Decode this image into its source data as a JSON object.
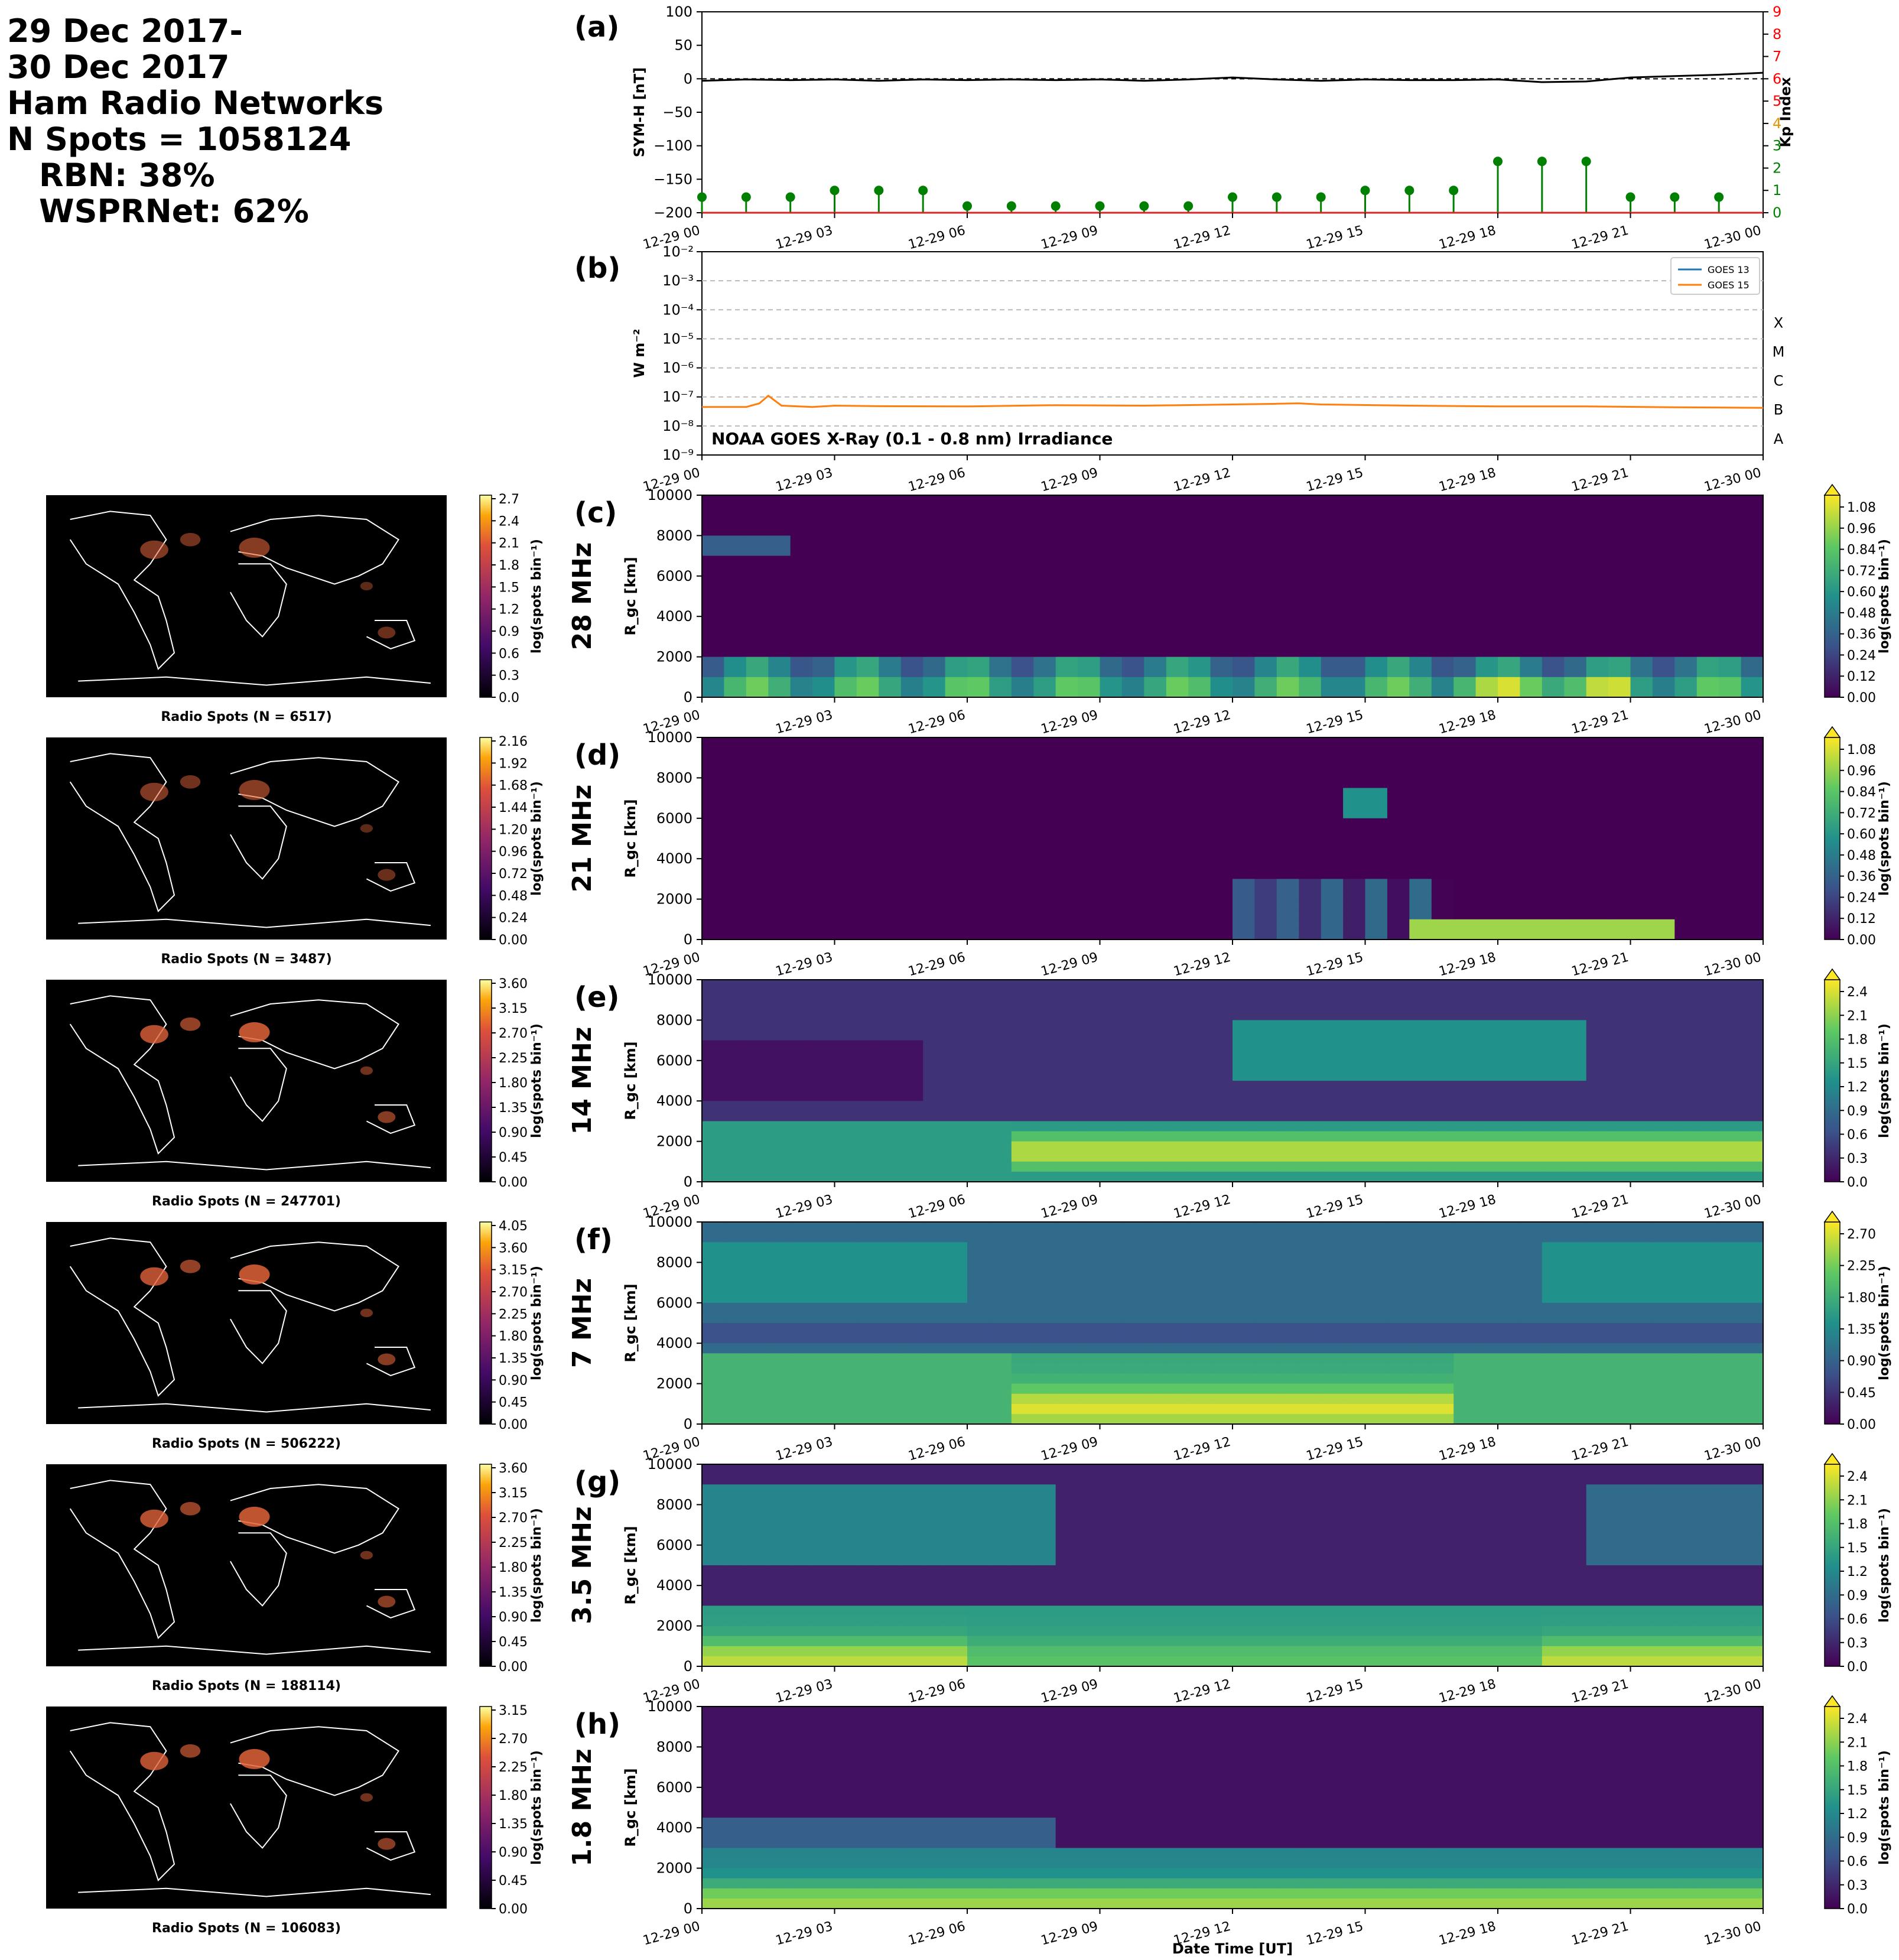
{
  "header": {
    "lines": [
      "29 Dec 2017-",
      "30 Dec 2017",
      "Ham Radio Networks",
      "N Spots = 1058124"
    ],
    "rbn": "RBN: 38%",
    "wspr": "WSPRNet: 62%"
  },
  "time_ticks": [
    "12-29 00",
    "12-29 03",
    "12-29 06",
    "12-29 09",
    "12-29 12",
    "12-29 15",
    "12-29 18",
    "12-29 21",
    "12-30 00"
  ],
  "colors": {
    "sym": "#000000",
    "kp": "#008000",
    "kp_high": "#ff0000",
    "goes13": "#1f77b4",
    "goes15": "#ff7f0e"
  },
  "chart_data": [
    {
      "panel": "(a)",
      "type": "line",
      "ylabel": "SYM-H [nT]",
      "y2label": "Kp Index",
      "ylim": [
        -200,
        100
      ],
      "yticks": [
        "100",
        "50",
        "0",
        "−50",
        "−100",
        "−150",
        "−200"
      ],
      "y2lim": [
        0,
        9
      ],
      "y2ticks": [
        "0",
        "1",
        "2",
        "3",
        "4",
        "5",
        "6",
        "7",
        "8",
        "9"
      ],
      "sym_h": {
        "x_hours": [
          0,
          1,
          2,
          3,
          4,
          5,
          6,
          7,
          8,
          9,
          10,
          11,
          12,
          13,
          14,
          15,
          16,
          17,
          18,
          19,
          20,
          21,
          22,
          23,
          24
        ],
        "values": [
          -3,
          -1,
          -2,
          -1,
          -3,
          -1,
          -2,
          -1,
          -2,
          -1,
          -3,
          -1,
          2,
          -1,
          -3,
          -1,
          -2,
          -2,
          -1,
          -5,
          -4,
          2,
          4,
          6,
          9
        ]
      },
      "kp": {
        "x_hours": [
          0,
          1,
          2,
          3,
          4,
          5,
          6,
          7,
          8,
          9,
          10,
          11,
          12,
          13,
          14,
          15,
          16,
          17,
          18,
          19,
          20,
          21,
          22,
          23
        ],
        "values": [
          0.7,
          0.7,
          0.7,
          1.0,
          1.0,
          1.0,
          0.3,
          0.3,
          0.3,
          0.3,
          0.3,
          0.3,
          0.7,
          0.7,
          0.7,
          1.0,
          1.0,
          1.0,
          2.3,
          2.3,
          2.3,
          0.7,
          0.7,
          0.7
        ]
      }
    },
    {
      "panel": "(b)",
      "type": "line",
      "ylabel": "W m⁻²",
      "yscale": "log",
      "ylim": [
        1e-09,
        0.01
      ],
      "yticks": [
        "10⁻²",
        "10⁻³",
        "10⁻⁴",
        "10⁻⁵",
        "10⁻⁶",
        "10⁻⁷",
        "10⁻⁸",
        "10⁻⁹"
      ],
      "class_labels": [
        "X",
        "M",
        "C",
        "B",
        "A"
      ],
      "annotation": "NOAA GOES X-Ray (0.1 - 0.8 nm) Irradiance",
      "legend": {
        "placement": "upper-right",
        "entries": [
          "GOES 13",
          "GOES 15"
        ]
      },
      "series": [
        {
          "name": "GOES 15",
          "x_hours": [
            0,
            1,
            1.3,
            1.5,
            1.8,
            2.5,
            3,
            4,
            6,
            8,
            10,
            12,
            13,
            13.5,
            14,
            16,
            18,
            20,
            22,
            24
          ],
          "values": [
            4.5e-08,
            4.5e-08,
            6e-08,
            1.1e-07,
            5e-08,
            4.5e-08,
            5e-08,
            4.8e-08,
            4.7e-08,
            5.2e-08,
            5e-08,
            5.5e-08,
            5.8e-08,
            6e-08,
            5.5e-08,
            5e-08,
            4.7e-08,
            4.7e-08,
            4.4e-08,
            4.2e-08
          ]
        }
      ]
    },
    {
      "panel": "(c)",
      "type": "heatmap",
      "band": "28 MHz",
      "ylabel": "R_gc [km]",
      "ylim": [
        0,
        10000
      ],
      "yticks": [
        "10000",
        "8000",
        "6000",
        "4000",
        "2000",
        "0"
      ],
      "cbar_ticks": [
        "1.08",
        "0.96",
        "0.84",
        "0.72",
        "0.60",
        "0.48",
        "0.36",
        "0.24",
        "0.12",
        "0.00"
      ],
      "cbar_label": "log(spots bin⁻¹)",
      "map_spots": "Radio Spots (N = 6517)",
      "map_cbar_ticks": [
        "2.7",
        "2.4",
        "2.1",
        "1.8",
        "1.5",
        "1.2",
        "0.9",
        "0.6",
        "0.3",
        "0.0"
      ]
    },
    {
      "panel": "(d)",
      "type": "heatmap",
      "band": "21 MHz",
      "ylabel": "R_gc [km]",
      "ylim": [
        0,
        10000
      ],
      "yticks": [
        "10000",
        "8000",
        "6000",
        "4000",
        "2000",
        "0"
      ],
      "cbar_ticks": [
        "1.08",
        "0.96",
        "0.84",
        "0.72",
        "0.60",
        "0.48",
        "0.36",
        "0.24",
        "0.12",
        "0.00"
      ],
      "cbar_label": "log(spots bin⁻¹)",
      "map_spots": "Radio Spots (N = 3487)",
      "map_cbar_ticks": [
        "2.16",
        "1.92",
        "1.68",
        "1.44",
        "1.20",
        "0.96",
        "0.72",
        "0.48",
        "0.24",
        "0.00"
      ]
    },
    {
      "panel": "(e)",
      "type": "heatmap",
      "band": "14 MHz",
      "ylabel": "R_gc [km]",
      "ylim": [
        0,
        10000
      ],
      "yticks": [
        "10000",
        "8000",
        "6000",
        "4000",
        "2000",
        "0"
      ],
      "cbar_ticks": [
        "2.4",
        "2.1",
        "1.8",
        "1.5",
        "1.2",
        "0.9",
        "0.6",
        "0.3",
        "0.0"
      ],
      "cbar_label": "log(spots bin⁻¹)",
      "map_spots": "Radio Spots (N = 247701)",
      "map_cbar_ticks": [
        "3.60",
        "3.15",
        "2.70",
        "2.25",
        "1.80",
        "1.35",
        "0.90",
        "0.45",
        "0.00"
      ]
    },
    {
      "panel": "(f)",
      "type": "heatmap",
      "band": "7 MHz",
      "ylabel": "R_gc [km]",
      "ylim": [
        0,
        10000
      ],
      "yticks": [
        "10000",
        "8000",
        "6000",
        "4000",
        "2000",
        "0"
      ],
      "cbar_ticks": [
        "2.70",
        "2.25",
        "1.80",
        "1.35",
        "0.90",
        "0.45",
        "0.00"
      ],
      "cbar_label": "log(spots bin⁻¹)",
      "map_spots": "Radio Spots (N = 506222)",
      "map_cbar_ticks": [
        "4.05",
        "3.60",
        "3.15",
        "2.70",
        "2.25",
        "1.80",
        "1.35",
        "0.90",
        "0.45",
        "0.00"
      ]
    },
    {
      "panel": "(g)",
      "type": "heatmap",
      "band": "3.5 MHz",
      "ylabel": "R_gc [km]",
      "ylim": [
        0,
        10000
      ],
      "yticks": [
        "10000",
        "8000",
        "6000",
        "4000",
        "2000",
        "0"
      ],
      "cbar_ticks": [
        "2.4",
        "2.1",
        "1.8",
        "1.5",
        "1.2",
        "0.9",
        "0.6",
        "0.3",
        "0.0"
      ],
      "cbar_label": "log(spots bin⁻¹)",
      "map_spots": "Radio Spots (N = 188114)",
      "map_cbar_ticks": [
        "3.60",
        "3.15",
        "2.70",
        "2.25",
        "1.80",
        "1.35",
        "0.90",
        "0.45",
        "0.00"
      ]
    },
    {
      "panel": "(h)",
      "type": "heatmap",
      "band": "1.8 MHz",
      "ylabel": "R_gc [km]",
      "ylim": [
        0,
        10000
      ],
      "yticks": [
        "10000",
        "8000",
        "6000",
        "4000",
        "2000",
        "0"
      ],
      "cbar_ticks": [
        "2.4",
        "2.1",
        "1.8",
        "1.5",
        "1.2",
        "0.9",
        "0.6",
        "0.3",
        "0.0"
      ],
      "cbar_label": "log(spots bin⁻¹)",
      "map_spots": "Radio Spots (N = 106083)",
      "map_cbar_ticks": [
        "3.15",
        "2.70",
        "2.25",
        "1.80",
        "1.35",
        "0.90",
        "0.45",
        "0.00"
      ],
      "xlabel": "Date Time [UT]"
    }
  ]
}
